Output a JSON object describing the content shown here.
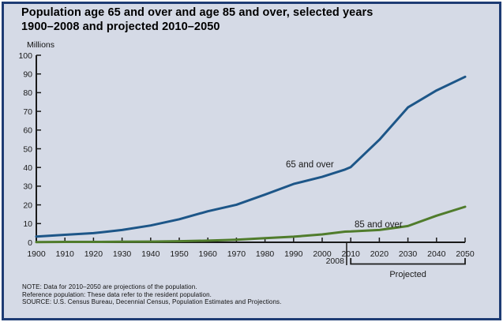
{
  "header": {
    "title": "Population age 65 and over and age 85 and over, selected years\n1900–2008 and projected 2010–2050"
  },
  "chart_data": {
    "type": "line",
    "title": "Population age 65 and over and age 85 and over, selected years 1900–2008 and projected 2010–2050",
    "ylabel": "Millions",
    "xlabel": "",
    "ylim": [
      0,
      100
    ],
    "xlim": [
      1900,
      2050
    ],
    "grid": false,
    "legend": "inline-labels",
    "y_ticks": [
      0,
      10,
      20,
      30,
      40,
      50,
      60,
      70,
      80,
      90,
      100
    ],
    "x_ticks": [
      1900,
      1910,
      1920,
      1930,
      1940,
      1950,
      1960,
      1970,
      1980,
      1990,
      2000,
      2010,
      2020,
      2030,
      2040,
      2050
    ],
    "x": [
      1900,
      1910,
      1920,
      1930,
      1940,
      1950,
      1960,
      1970,
      1980,
      1990,
      2000,
      2008,
      2010,
      2020,
      2030,
      2040,
      2050
    ],
    "series": [
      {
        "name": "65 and over",
        "color": "#1d5688",
        "values": [
          3.1,
          4.0,
          4.9,
          6.6,
          9.0,
          12.3,
          16.6,
          20.1,
          25.5,
          31.2,
          35.0,
          38.9,
          40.2,
          54.8,
          72.1,
          81.2,
          88.5
        ]
      },
      {
        "name": "85 and over",
        "color": "#507c2c",
        "values": [
          0.1,
          0.2,
          0.2,
          0.3,
          0.4,
          0.6,
          0.9,
          1.4,
          2.2,
          3.0,
          4.2,
          5.7,
          5.8,
          6.6,
          8.7,
          14.2,
          19.0
        ]
      }
    ],
    "annotations": {
      "break_year": 2008,
      "break_label": "2008",
      "projected_label": "Projected",
      "projected_range": [
        2010,
        2050
      ]
    }
  },
  "notes": {
    "note": "NOTE: Data for 2010–2050 are projections of the population.",
    "reference": "Reference population: These data refer to the resident population.",
    "source": "SOURCE: U.S. Census Bureau, Decennial Census, Population Estimates and Projections."
  },
  "colors": {
    "background": "#d5dae6",
    "frame_border": "#1e3c74",
    "axis": "#1a1a1a",
    "series_65_and_over": "#1d5688",
    "series_85_and_over": "#507c2c"
  }
}
